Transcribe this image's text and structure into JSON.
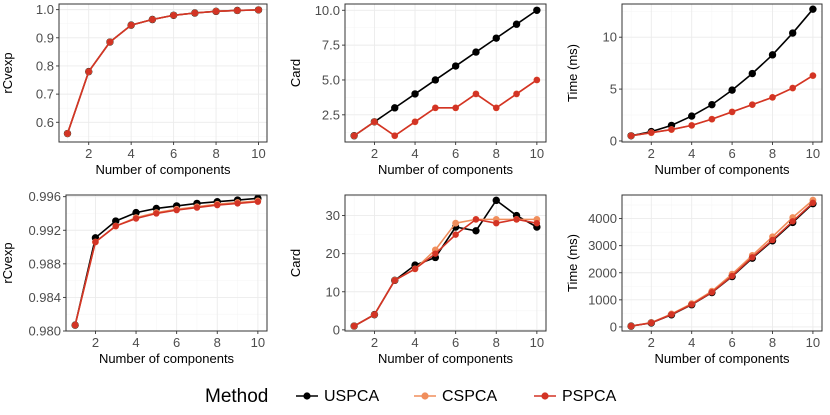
{
  "chart_data": [
    {
      "type": "line",
      "xlabel": "Number of components",
      "ylabel": "rCvexp",
      "xlim": [
        0.6,
        10.4
      ],
      "ylim": [
        0.53,
        1.02
      ],
      "xticks": [
        2,
        4,
        6,
        8,
        10
      ],
      "xtick_labels": [
        "2",
        "4",
        "6",
        "8",
        "10"
      ],
      "yticks": [
        0.6,
        0.7,
        0.8,
        0.9,
        1.0
      ],
      "ytick_labels": [
        "0.6",
        "0.7",
        "0.8",
        "0.9",
        "1.0"
      ],
      "x": [
        1,
        2,
        3,
        4,
        5,
        6,
        7,
        8,
        9,
        10
      ],
      "series": [
        {
          "name": "USPCA",
          "values": [
            0.56,
            0.78,
            0.885,
            0.945,
            0.965,
            0.98,
            0.988,
            0.994,
            0.997,
            0.999
          ]
        },
        {
          "name": "CSPCA",
          "values": [
            0.56,
            0.78,
            0.885,
            0.945,
            0.965,
            0.98,
            0.988,
            0.994,
            0.997,
            0.999
          ]
        },
        {
          "name": "PSPCA",
          "values": [
            0.56,
            0.78,
            0.885,
            0.945,
            0.965,
            0.98,
            0.988,
            0.994,
            0.997,
            0.999
          ]
        }
      ]
    },
    {
      "type": "line",
      "xlabel": "Number of components",
      "ylabel": "Card",
      "xlim": [
        0.55,
        10.45
      ],
      "ylim": [
        0.55,
        10.45
      ],
      "xticks": [
        2,
        4,
        6,
        8,
        10
      ],
      "xtick_labels": [
        "2",
        "4",
        "6",
        "8",
        "10"
      ],
      "yticks": [
        2.5,
        5,
        7.5,
        10
      ],
      "ytick_labels": [
        "2.5",
        "5.0",
        "7.5",
        "10.0"
      ],
      "x": [
        1,
        2,
        3,
        4,
        5,
        6,
        7,
        8,
        9,
        10
      ],
      "series": [
        {
          "name": "USPCA",
          "values": [
            1,
            2,
            3,
            4,
            5,
            6,
            7,
            8,
            9,
            10
          ]
        },
        {
          "name": "CSPCA",
          "values": [
            1,
            2,
            1,
            2,
            3,
            3,
            4,
            3,
            4,
            5
          ]
        },
        {
          "name": "PSPCA",
          "values": [
            1,
            2,
            1,
            2,
            3,
            3,
            4,
            3,
            4,
            5
          ]
        }
      ]
    },
    {
      "type": "line",
      "xlabel": "Number of components",
      "ylabel": "Time (ms)",
      "xlim": [
        0.55,
        10.45
      ],
      "ylim": [
        -0.1,
        13.2
      ],
      "xticks": [
        2,
        4,
        6,
        8,
        10
      ],
      "xtick_labels": [
        "2",
        "4",
        "6",
        "8",
        "10"
      ],
      "yticks": [
        0,
        5,
        10
      ],
      "ytick_labels": [
        "0",
        "5",
        "10"
      ],
      "x": [
        1,
        2,
        3,
        4,
        5,
        6,
        7,
        8,
        9,
        10
      ],
      "series": [
        {
          "name": "USPCA",
          "values": [
            0.5,
            0.9,
            1.5,
            2.4,
            3.5,
            4.9,
            6.5,
            8.3,
            10.4,
            12.7
          ]
        },
        {
          "name": "CSPCA",
          "values": [
            0.5,
            0.8,
            1.1,
            1.5,
            2.1,
            2.8,
            3.5,
            4.2,
            5.1,
            6.3
          ]
        },
        {
          "name": "PSPCA",
          "values": [
            0.5,
            0.8,
            1.1,
            1.5,
            2.1,
            2.8,
            3.5,
            4.2,
            5.1,
            6.3
          ]
        }
      ]
    },
    {
      "type": "line",
      "xlabel": "Number of components",
      "ylabel": "rCvexp",
      "xlim": [
        0.55,
        10.45
      ],
      "ylim": [
        0.98,
        0.9962
      ],
      "xticks": [
        2,
        4,
        6,
        8,
        10
      ],
      "xtick_labels": [
        "2",
        "4",
        "6",
        "8",
        "10"
      ],
      "yticks": [
        0.98,
        0.984,
        0.988,
        0.992,
        0.996
      ],
      "ytick_labels": [
        "0.980",
        "0.984",
        "0.988",
        "0.992",
        "0.996"
      ],
      "x": [
        1,
        2,
        3,
        4,
        5,
        6,
        7,
        8,
        9,
        10
      ],
      "series": [
        {
          "name": "USPCA",
          "values": [
            0.9807,
            0.9911,
            0.9931,
            0.9941,
            0.9946,
            0.9949,
            0.9952,
            0.9954,
            0.9956,
            0.9958
          ]
        },
        {
          "name": "CSPCA",
          "values": [
            0.9807,
            0.9906,
            0.9925,
            0.9935,
            0.9941,
            0.9945,
            0.9948,
            0.9951,
            0.9953,
            0.9955
          ]
        },
        {
          "name": "PSPCA",
          "values": [
            0.9807,
            0.9906,
            0.9925,
            0.9934,
            0.994,
            0.9944,
            0.9947,
            0.995,
            0.9952,
            0.9954
          ]
        }
      ]
    },
    {
      "type": "line",
      "xlabel": "Number of components",
      "ylabel": "Card",
      "xlim": [
        0.55,
        10.45
      ],
      "ylim": [
        -0.3,
        35.4
      ],
      "xticks": [
        2,
        4,
        6,
        8,
        10
      ],
      "xtick_labels": [
        "2",
        "4",
        "6",
        "8",
        "10"
      ],
      "yticks": [
        0,
        10,
        20,
        30
      ],
      "ytick_labels": [
        "0",
        "10",
        "20",
        "30"
      ],
      "x": [
        1,
        2,
        3,
        4,
        5,
        6,
        7,
        8,
        9,
        10
      ],
      "series": [
        {
          "name": "USPCA",
          "values": [
            1,
            4,
            13,
            17,
            19,
            27,
            26,
            34,
            30,
            27
          ]
        },
        {
          "name": "CSPCA",
          "values": [
            1,
            4,
            13,
            16,
            21,
            28,
            29,
            29,
            29,
            29
          ]
        },
        {
          "name": "PSPCA",
          "values": [
            1,
            4,
            13,
            16,
            20,
            25,
            29,
            28,
            29,
            28
          ]
        }
      ]
    },
    {
      "type": "line",
      "xlabel": "Number of components",
      "ylabel": "Time (ms)",
      "xlim": [
        0.55,
        10.45
      ],
      "ylim": [
        -150,
        4870
      ],
      "xticks": [
        2,
        4,
        6,
        8,
        10
      ],
      "xtick_labels": [
        "2",
        "4",
        "6",
        "8",
        "10"
      ],
      "yticks": [
        0,
        1000,
        2000,
        3000,
        4000
      ],
      "ytick_labels": [
        "0",
        "1000",
        "2000",
        "3000",
        "4000"
      ],
      "x": [
        1,
        2,
        3,
        4,
        5,
        6,
        7,
        8,
        9,
        10
      ],
      "series": [
        {
          "name": "USPCA",
          "values": [
            30,
            150,
            450,
            820,
            1270,
            1860,
            2540,
            3180,
            3860,
            4550
          ]
        },
        {
          "name": "CSPCA",
          "values": [
            30,
            160,
            480,
            860,
            1320,
            1950,
            2640,
            3330,
            4040,
            4680
          ]
        },
        {
          "name": "PSPCA",
          "values": [
            30,
            150,
            460,
            830,
            1280,
            1880,
            2570,
            3210,
            3900,
            4580
          ]
        }
      ]
    }
  ],
  "legend": {
    "title": "Method",
    "items": [
      {
        "name": "USPCA",
        "color": "#000000"
      },
      {
        "name": "CSPCA",
        "color": "#f08e5c"
      },
      {
        "name": "PSPCA",
        "color": "#d33425"
      }
    ]
  },
  "colors": {
    "USPCA": "#000000",
    "CSPCA": "#f08e5c",
    "PSPCA": "#d33425",
    "panel_border": "#333333",
    "gridlines": "#ebebeb",
    "tick_text": "#4d4d4d"
  }
}
